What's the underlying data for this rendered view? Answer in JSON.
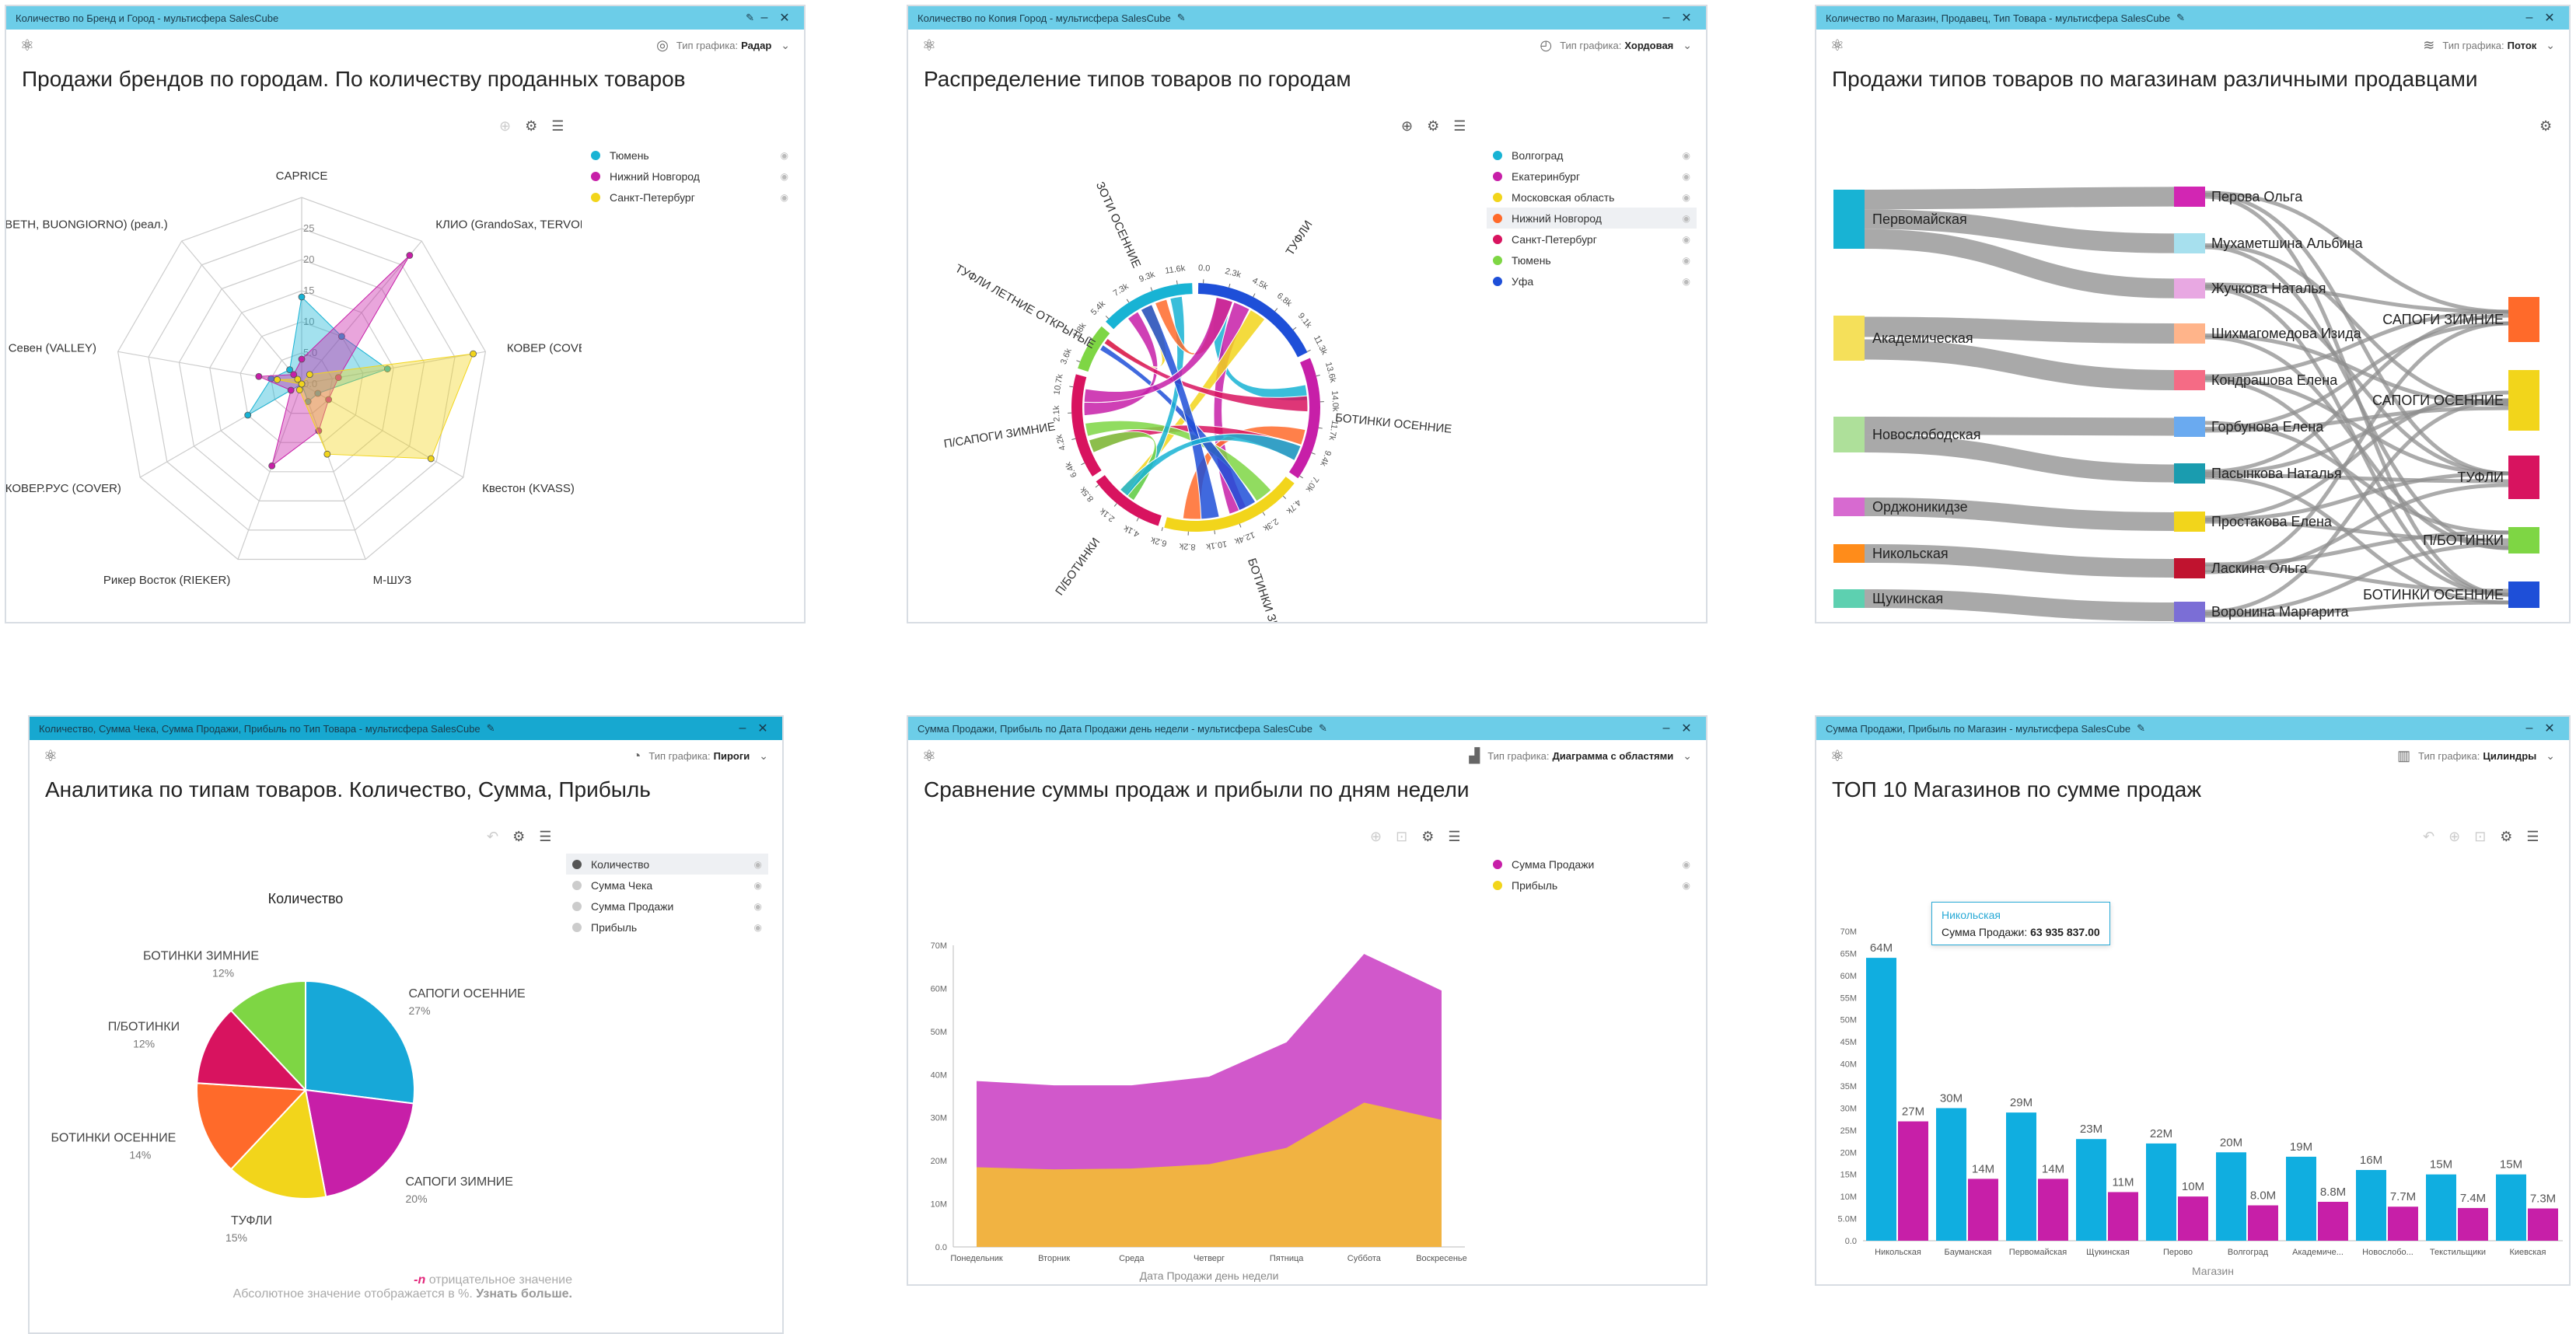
{
  "widgets": [
    {
      "window_title": "Количество по Бренд и Город - мультисфера SalesCube",
      "chart_type_label": "Тип графика:",
      "chart_type_value": "Радар",
      "title": "Продажи брендов по городам. По количеству проданных товаров",
      "legend": [
        {
          "label": "Тюмень",
          "color": "#18b3d4"
        },
        {
          "label": "Нижний Новгород",
          "color": "#c71fa8"
        },
        {
          "label": "Санкт-Петербург",
          "color": "#f2d51b"
        }
      ],
      "chart_data": {
        "type": "radar",
        "axes": [
          "CAPRICE",
          "КЛИО (GrandoSax, TERVOLI)",
          "КОВЕР (COVER)",
          "Квестон (KVASS)",
          "М-ШУЗ",
          "Рикер Восток (RIEKER)",
          "КОВЕР.РУС (COVER)",
          "Севен (VALLEY)",
          "BETH, BUONGIORNO) (реал.)"
        ],
        "ticks": [
          "0.0",
          "5.0",
          "10",
          "15",
          "20",
          "25"
        ],
        "rmax": 30,
        "series": [
          {
            "name": "Тюмень",
            "values": [
              14,
              10,
              14,
              3,
              3,
              0,
              10,
              5,
              3
            ]
          },
          {
            "name": "Нижний Новгород",
            "values": [
              4,
              27,
              6,
              5,
              8,
              14,
              2,
              7,
              2
            ]
          },
          {
            "name": "Санкт-Петербург",
            "values": [
              0,
              2,
              28,
              24,
              12,
              1,
              0,
              4,
              1
            ]
          }
        ]
      }
    },
    {
      "window_title": "Количество по Копия Город - мультисфера SalesCube",
      "chart_type_label": "Тип графика:",
      "chart_type_value": "Хордовая",
      "title": "Распределение типов товаров по городам",
      "legend": [
        {
          "label": "Волгоград",
          "color": "#18b3d4"
        },
        {
          "label": "Екатеринбург",
          "color": "#c71fa8"
        },
        {
          "label": "Московская область",
          "color": "#f2d51b"
        },
        {
          "label": "Нижний Новгород",
          "color": "#ff6a2a"
        },
        {
          "label": "Санкт-Петербург",
          "color": "#d8135f"
        },
        {
          "label": "Тюмень",
          "color": "#7ed644"
        },
        {
          "label": "Уфа",
          "color": "#1e4fd8"
        }
      ],
      "chart_data": {
        "type": "chord",
        "groups": [
          {
            "name": "ТУФЛИ",
            "value": 14,
            "color": "#1e4fd8"
          },
          {
            "name": "БОТИНКИ ОСЕННИЕ",
            "value": 13,
            "color": "#c71fa8"
          },
          {
            "name": "БОТИНКИ ЗИ",
            "value": 15,
            "color": "#f2d51b"
          },
          {
            "name": "П/БОТИНКИ",
            "value": 8,
            "color": "#d8135f"
          },
          {
            "name": "П/САПОГИ ЗИМНИЕ",
            "value": 11,
            "color": "#d8135f"
          },
          {
            "name": "ТУФЛИ ЛЕТНИЕ ОТКРЫТЫЕ",
            "value": 5,
            "color": "#7ed644"
          },
          {
            "name": "ЗОТИ ОСЕННИЕ",
            "value": 10,
            "color": "#18b3d4"
          }
        ],
        "tick_labels": [
          "0.0",
          "2.3k",
          "4.5k",
          "6.8k",
          "9.1k",
          "11.3k",
          "13.6k",
          "14.0k",
          "11.7k",
          "9.4k",
          "7.0k",
          "4.7k",
          "2.3k",
          "12.4k",
          "10.1k",
          "8.2k",
          "6.2k",
          "4.1k",
          "2.1k",
          "8.5k",
          "6.4k",
          "4.2k",
          "2.1k",
          "10.7k",
          "3.6k",
          "1.8k",
          "5.4k",
          "7.3k",
          "9.3k",
          "11.6k"
        ]
      }
    },
    {
      "window_title": "Количество по Магазин, Продавец, Тип Товара - мультисфера SalesCube",
      "chart_type_label": "Тип графика:",
      "chart_type_value": "Поток",
      "title": "Продажи типов товаров по магазинам различными продавцами",
      "chart_data": {
        "type": "sankey",
        "sources": [
          {
            "name": "Первомайская",
            "color": "#18b3d4",
            "value": 3
          },
          {
            "name": "Академическая",
            "color": "#f5e05a",
            "value": 2
          },
          {
            "name": "Новослободская",
            "color": "#aee09a",
            "value": 2
          },
          {
            "name": "Орджоникидзе",
            "color": "#d76ad0",
            "value": 1
          },
          {
            "name": "Никольская",
            "color": "#ff8c1a",
            "value": 1
          },
          {
            "name": "Щукинская",
            "color": "#5dd0b0",
            "value": 1
          }
        ],
        "sellers": [
          {
            "name": "Перова Ольга",
            "color": "#d226b3"
          },
          {
            "name": "Мухаметшина Альбина",
            "color": "#a7e0ee"
          },
          {
            "name": "Жучкова Наталья",
            "color": "#e8a8e2"
          },
          {
            "name": "Шихмагомедова Изида",
            "color": "#ffb48a"
          },
          {
            "name": "Кондрашова Елена",
            "color": "#f56b85"
          },
          {
            "name": "Горбунова Елена",
            "color": "#6aaaf0"
          },
          {
            "name": "Пасынкова Наталья",
            "color": "#1a9caf"
          },
          {
            "name": "Простакова Елена",
            "color": "#f2d51b"
          },
          {
            "name": "Ласкина Ольга",
            "color": "#c0132f"
          },
          {
            "name": "Воронина Маргарита",
            "color": "#7b6ed6"
          }
        ],
        "targets": [
          {
            "name": "САПОГИ ЗИМНИЕ",
            "color": "#ff6a2a"
          },
          {
            "name": "САПОГИ ОСЕННИЕ",
            "color": "#f2d51b"
          },
          {
            "name": "ТУФЛИ",
            "color": "#d8135f"
          },
          {
            "name": "П/БОТИНКИ",
            "color": "#7ed644"
          },
          {
            "name": "БОТИНКИ ОСЕННИЕ",
            "color": "#1e4fd8"
          }
        ]
      }
    },
    {
      "window_title": "Количество, Сумма Чека, Сумма Продажи, Прибыль по Тип Товара - мультисфера SalesCube",
      "chart_type_label": "Тип графика:",
      "chart_type_value": "Пироги",
      "title": "Аналитика по типам товаров. Количество, Сумма, Прибыль",
      "legend": [
        {
          "label": "Количество",
          "color": "#555555",
          "active": true
        },
        {
          "label": "Сумма Чека",
          "color": "#cccccc"
        },
        {
          "label": "Сумма Продажи",
          "color": "#cccccc"
        },
        {
          "label": "Прибыль",
          "color": "#cccccc"
        }
      ],
      "note": {
        "neg_symbol": "-n",
        "neg_text": "отрицательное значение",
        "abs_text": "Абсолютное значение отображается в %.",
        "link_text": "Узнать больше."
      },
      "chart_data": {
        "type": "pie",
        "title": "Количество",
        "slices": [
          {
            "label": "САПОГИ ОСЕННИЕ",
            "pct": "27%",
            "value": 27,
            "color": "#17a8d8"
          },
          {
            "label": "САПОГИ ЗИМНИЕ",
            "pct": "20%",
            "value": 20,
            "color": "#c71fa8"
          },
          {
            "label": "ТУФЛИ",
            "pct": "15%",
            "value": 15,
            "color": "#f2d51b"
          },
          {
            "label": "БОТИНКИ ОСЕННИЕ",
            "pct": "14%",
            "value": 14,
            "color": "#ff6a2a"
          },
          {
            "label": "П/БОТИНКИ",
            "pct": "12%",
            "value": 12,
            "color": "#d8135f"
          },
          {
            "label": "БОТИНКИ ЗИМНИЕ",
            "pct": "12%",
            "value": 12,
            "color": "#7ed644"
          }
        ]
      }
    },
    {
      "window_title": "Сумма Продажи, Прибыль по Дата Продажи день недели - мультисфера SalesCube",
      "chart_type_label": "Тип графика:",
      "chart_type_value": "Диаграмма с областями",
      "title": "Сравнение суммы продаж и прибыли по дням недели",
      "legend": [
        {
          "label": "Сумма Продажи",
          "color": "#c71fa8"
        },
        {
          "label": "Прибыль",
          "color": "#f2d51b"
        }
      ],
      "chart_data": {
        "type": "area",
        "categories": [
          "Понедельник",
          "Вторник",
          "Среда",
          "Четверг",
          "Пятница",
          "Суббота",
          "Воскресенье"
        ],
        "xlabel": "Дата Продажи день недели",
        "ylim": [
          0,
          70
        ],
        "yticks": [
          "0.0",
          "10M",
          "20M",
          "30M",
          "40M",
          "50M",
          "60M",
          "70M"
        ],
        "series": [
          {
            "name": "Сумма Продажи",
            "values": [
              38.5,
              37.5,
              37.5,
              39.5,
              47.5,
              68,
              59.5
            ],
            "color": "#cf4fc8"
          },
          {
            "name": "Прибыль",
            "values": [
              18.5,
              18,
              18.2,
              19.2,
              23,
              33.5,
              29.5
            ],
            "color": "#f2b83a"
          }
        ]
      }
    },
    {
      "window_title": "Сумма Продажи, Прибыль по Магазин - мультисфера SalesCube",
      "chart_type_label": "Тип графика:",
      "chart_type_value": "Цилиндры",
      "title": "ТОП 10 Магазинов по сумме продаж",
      "tooltip": {
        "title": "Никольская",
        "label": "Сумма Продажи:",
        "value": "63 935 837.00"
      },
      "chart_data": {
        "type": "bar",
        "categories": [
          "Никольская",
          "Бауманская",
          "Первомайская",
          "Щукинская",
          "Перово",
          "Волгоград",
          "Академиче...",
          "Новослобо...",
          "Текстильщики",
          "Киевская"
        ],
        "xlabel": "Магазин",
        "ylim": [
          0,
          70
        ],
        "yticks": [
          "0.0",
          "5.0M",
          "10M",
          "15M",
          "20M",
          "25M",
          "30M",
          "35M",
          "40M",
          "45M",
          "50M",
          "55M",
          "60M",
          "65M",
          "70M"
        ],
        "series": [
          {
            "name": "Сумма Продажи",
            "values": [
              64,
              30,
              29,
              23,
              22,
              20,
              19,
              16,
              15,
              15
            ],
            "labels": [
              "64M",
              "30M",
              "29M",
              "23M",
              "22M",
              "20M",
              "19M",
              "16M",
              "15M",
              "15M"
            ],
            "color": "#10aee0"
          },
          {
            "name": "Прибыль",
            "values": [
              27,
              14,
              14,
              11,
              10,
              8.0,
              8.8,
              7.7,
              7.4,
              7.3
            ],
            "labels": [
              "27M",
              "14M",
              "14M",
              "11M",
              "10M",
              "8.0M",
              "8.8M",
              "7.7M",
              "7.4M",
              "7.3M"
            ],
            "color": "#c71fa8"
          }
        ]
      }
    }
  ]
}
